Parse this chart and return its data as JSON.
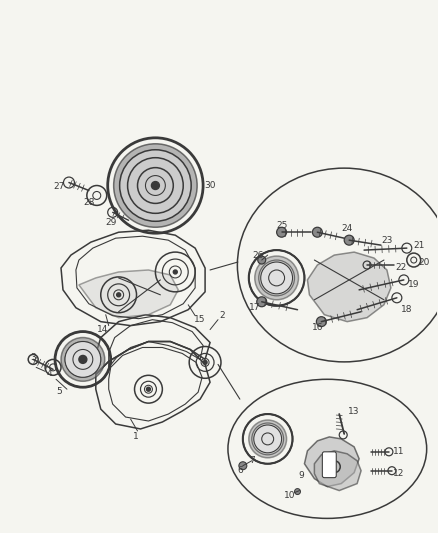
{
  "bg_color": "#f5f5f0",
  "fig_width": 4.38,
  "fig_height": 5.33,
  "dpi": 100,
  "gray": "#3a3a3a",
  "light_gray": "#aaaaaa",
  "mid_gray": "#888888"
}
